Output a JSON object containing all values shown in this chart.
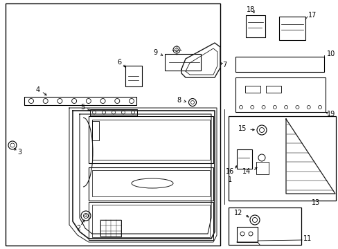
{
  "bg_color": "#ffffff",
  "lc": "#1a1a1a",
  "fig_w": 4.89,
  "fig_h": 3.6,
  "dpi": 100
}
